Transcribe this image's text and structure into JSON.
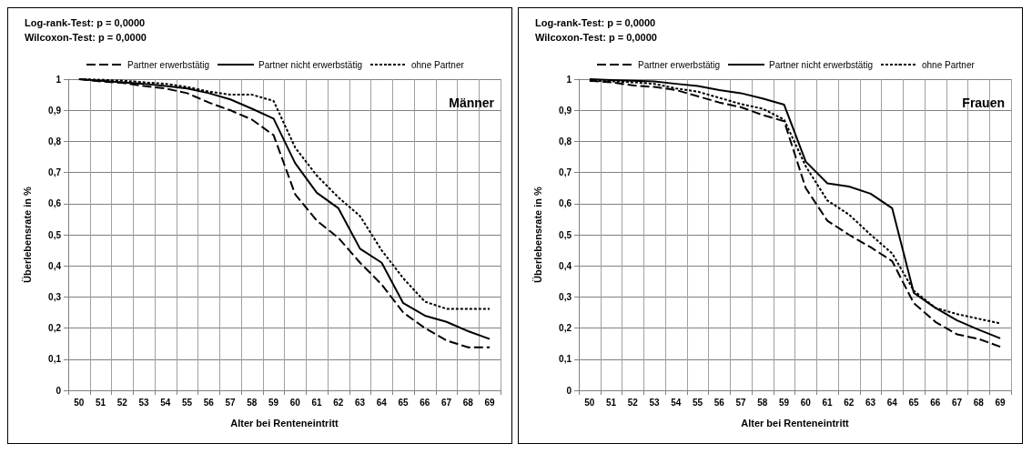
{
  "chart_data": [
    {
      "type": "line",
      "title": "Männer",
      "annotations": [
        "Log-rank-Test: p = 0,0000",
        "Wilcoxon-Test: p = 0,0000"
      ],
      "xlabel": "Alter bei Renteneintritt",
      "ylabel": "Überlebensrate in %",
      "categories": [
        "50",
        "51",
        "52",
        "53",
        "54",
        "55",
        "56",
        "57",
        "58",
        "59",
        "60",
        "61",
        "62",
        "63",
        "64",
        "65",
        "66",
        "67",
        "68",
        "69"
      ],
      "series": [
        {
          "name": "Partner erwerbstätig",
          "color": "#000000",
          "line_style": "dashed",
          "values": [
            1,
            0.993,
            0.988,
            0.978,
            0.97,
            0.955,
            0.925,
            0.9,
            0.87,
            0.82,
            0.63,
            0.545,
            0.49,
            0.41,
            0.34,
            0.25,
            0.2,
            0.16,
            0.138,
            0.138
          ]
        },
        {
          "name": "Partner nicht erwerbstätig",
          "color": "#000000",
          "line_style": "solid",
          "values": [
            1,
            0.995,
            0.99,
            0.985,
            0.978,
            0.97,
            0.955,
            0.935,
            0.905,
            0.873,
            0.73,
            0.635,
            0.585,
            0.455,
            0.41,
            0.28,
            0.24,
            0.22,
            0.19,
            0.165
          ]
        },
        {
          "name": "ohne Partner",
          "color": "#000000",
          "line_style": "dotted",
          "values": [
            1,
            0.998,
            0.995,
            0.99,
            0.985,
            0.975,
            0.96,
            0.95,
            0.95,
            0.93,
            0.78,
            0.69,
            0.62,
            0.56,
            0.45,
            0.36,
            0.285,
            0.262,
            0.262,
            0.262
          ]
        }
      ],
      "ylim": [
        0,
        1
      ],
      "yticks": [
        {
          "value": 0,
          "label": "0"
        },
        {
          "value": 0.1,
          "label": "0,1"
        },
        {
          "value": 0.2,
          "label": "0,2"
        },
        {
          "value": 0.3,
          "label": "0,3"
        },
        {
          "value": 0.4,
          "label": "0,4"
        },
        {
          "value": 0.5,
          "label": "0,5"
        },
        {
          "value": 0.6,
          "label": "0,6"
        },
        {
          "value": 0.7,
          "label": "0,7"
        },
        {
          "value": 0.8,
          "label": "0,8"
        },
        {
          "value": 0.9,
          "label": "0,9"
        },
        {
          "value": 1,
          "label": "1"
        }
      ],
      "grid": true,
      "legend": "top",
      "marker": "none"
    },
    {
      "type": "line",
      "title": "Frauen",
      "annotations": [
        "Log-rank-Test: p = 0,0000",
        "Wilcoxon-Test: p = 0,0000"
      ],
      "xlabel": "Alter bei Renteneintritt",
      "ylabel": "Überlebensrate in %",
      "categories": [
        "50",
        "51",
        "52",
        "53",
        "54",
        "55",
        "56",
        "57",
        "58",
        "59",
        "60",
        "61",
        "62",
        "63",
        "64",
        "65",
        "66",
        "67",
        "68",
        "69"
      ],
      "series": [
        {
          "name": "Partner erwerbstätig",
          "color": "#000000",
          "line_style": "dashed",
          "values": [
            0.995,
            0.99,
            0.98,
            0.975,
            0.965,
            0.945,
            0.925,
            0.91,
            0.885,
            0.865,
            0.65,
            0.545,
            0.5,
            0.46,
            0.415,
            0.28,
            0.22,
            0.18,
            0.165,
            0.14
          ]
        },
        {
          "name": "Partner nicht erwerbstätig",
          "color": "#000000",
          "line_style": "solid",
          "values": [
            1,
            0.997,
            0.995,
            0.993,
            0.985,
            0.978,
            0.965,
            0.955,
            0.938,
            0.918,
            0.735,
            0.665,
            0.655,
            0.632,
            0.585,
            0.313,
            0.265,
            0.225,
            0.195,
            0.167
          ]
        },
        {
          "name": "ohne Partner",
          "color": "#000000",
          "line_style": "dotted",
          "values": [
            0.995,
            0.993,
            0.99,
            0.985,
            0.97,
            0.96,
            0.94,
            0.92,
            0.905,
            0.87,
            0.72,
            0.61,
            0.565,
            0.5,
            0.44,
            0.32,
            0.265,
            0.245,
            0.23,
            0.215
          ]
        }
      ],
      "ylim": [
        0,
        1
      ],
      "yticks": [
        {
          "value": 0,
          "label": "0"
        },
        {
          "value": 0.1,
          "label": "0,1"
        },
        {
          "value": 0.2,
          "label": "0,2"
        },
        {
          "value": 0.3,
          "label": "0,3"
        },
        {
          "value": 0.4,
          "label": "0,4"
        },
        {
          "value": 0.5,
          "label": "0,5"
        },
        {
          "value": 0.6,
          "label": "0,6"
        },
        {
          "value": 0.7,
          "label": "0,7"
        },
        {
          "value": 0.8,
          "label": "0,8"
        },
        {
          "value": 0.9,
          "label": "0,9"
        },
        {
          "value": 1,
          "label": "1"
        }
      ],
      "grid": true,
      "legend": "top",
      "marker": "none"
    }
  ]
}
